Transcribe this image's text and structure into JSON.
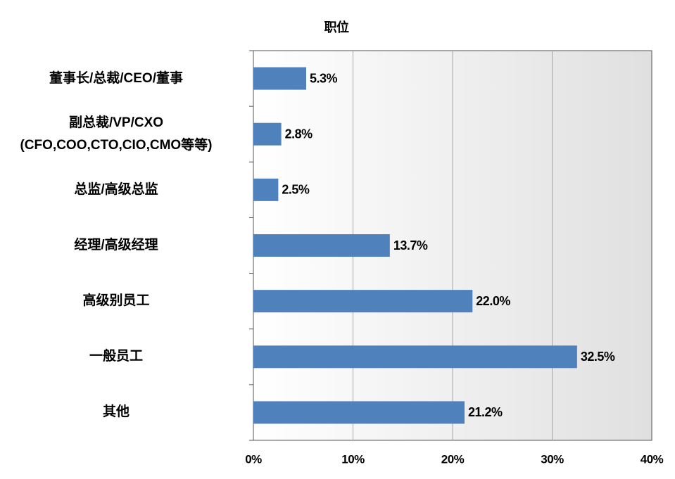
{
  "chart_data": {
    "type": "barh",
    "title": "职位",
    "categories": [
      "董事长/总裁/CEO/董事",
      "副总裁/VP/CXO\n(CFO,COO,CTO,CIO,CMO等等)",
      "总监/高级总监",
      "经理/高级经理",
      "高级别员工",
      "一般员工",
      "其他"
    ],
    "values": [
      5.3,
      2.8,
      2.5,
      13.7,
      22.0,
      32.5,
      21.2
    ],
    "value_labels": [
      "5.3%",
      "2.8%",
      "2.5%",
      "13.7%",
      "22.0%",
      "32.5%",
      "21.2%"
    ],
    "color": "#4f81bd",
    "xlim": [
      0,
      40
    ],
    "xticks": [
      {
        "value": 0,
        "label": "0%"
      },
      {
        "value": 10,
        "label": "10%"
      },
      {
        "value": 20,
        "label": "20%"
      },
      {
        "value": 30,
        "label": "30%"
      },
      {
        "value": 40,
        "label": "40%"
      }
    ],
    "grid": true
  }
}
